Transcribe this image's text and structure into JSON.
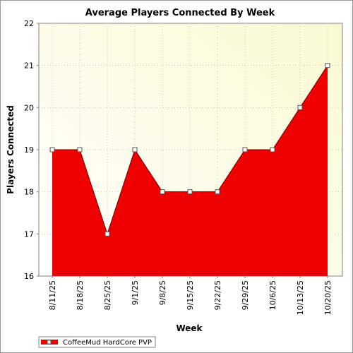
{
  "chart_data": {
    "type": "area",
    "title": "Average Players Connected By Week",
    "xlabel": "Week",
    "ylabel": "Players Connected",
    "categories": [
      "8/11/25",
      "8/18/25",
      "8/25/25",
      "9/1/25",
      "9/8/25",
      "9/15/25",
      "9/22/25",
      "9/29/25",
      "10/6/25",
      "10/13/25",
      "10/20/25"
    ],
    "series": [
      {
        "name": "CoffeeMud HardCore PVP",
        "values": [
          19,
          19,
          17,
          19,
          18,
          18,
          18,
          19,
          19,
          20,
          21
        ],
        "color": "#ee0000"
      }
    ],
    "ylim": [
      16,
      22
    ],
    "yticks": [
      16,
      17,
      18,
      19,
      20,
      21,
      22
    ],
    "grid": true,
    "legend": "bottom-left",
    "background_gradient": [
      "#fafad2",
      "#ffffff"
    ]
  }
}
